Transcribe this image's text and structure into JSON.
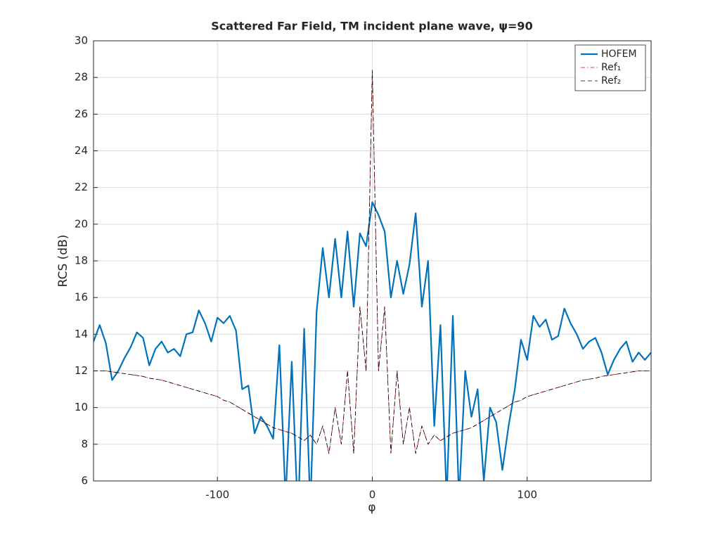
{
  "chart_data": {
    "type": "line",
    "title": "Scattered Far Field, TM incident plane wave, ψ=90",
    "xlabel": "φ",
    "ylabel": "RCS (dB)",
    "x": [
      -180,
      -176,
      -172,
      -168,
      -164,
      -160,
      -156,
      -152,
      -148,
      -144,
      -140,
      -136,
      -132,
      -128,
      -124,
      -120,
      -116,
      -112,
      -108,
      -104,
      -100,
      -96,
      -92,
      -88,
      -84,
      -80,
      -76,
      -72,
      -68,
      -64,
      -60,
      -56,
      -52,
      -48,
      -44,
      -40,
      -36,
      -32,
      -28,
      -24,
      -20,
      -16,
      -12,
      -8,
      -4,
      0,
      4,
      8,
      12,
      16,
      20,
      24,
      28,
      32,
      36,
      40,
      44,
      48,
      52,
      56,
      60,
      64,
      68,
      72,
      76,
      80,
      84,
      88,
      92,
      96,
      100,
      104,
      108,
      112,
      116,
      120,
      124,
      128,
      132,
      136,
      140,
      144,
      148,
      152,
      156,
      160,
      164,
      168,
      172,
      176,
      180
    ],
    "series": [
      {
        "name": "HOFEM",
        "color": "#0072bd",
        "style": "solid",
        "width": 2.2,
        "values": [
          13.6,
          14.5,
          13.5,
          11.5,
          12.0,
          12.7,
          13.3,
          14.1,
          13.8,
          12.3,
          13.2,
          13.6,
          13.0,
          13.2,
          12.8,
          14.0,
          14.1,
          15.3,
          14.6,
          13.6,
          14.9,
          14.6,
          15.0,
          14.2,
          11.0,
          11.2,
          8.6,
          9.5,
          9.0,
          8.3,
          13.4,
          5.0,
          12.5,
          4.0,
          14.3,
          4.5,
          15.2,
          18.7,
          16.0,
          19.2,
          16.0,
          19.6,
          15.5,
          19.5,
          18.8,
          21.2,
          20.5,
          19.6,
          16.0,
          18.0,
          16.2,
          17.8,
          20.6,
          15.5,
          18.0,
          9.0,
          14.5,
          5.0,
          15.0,
          5.0,
          12.0,
          9.5,
          11.0,
          6.0,
          10.0,
          9.2,
          6.6,
          9.0,
          11.0,
          13.7,
          12.6,
          15.0,
          14.4,
          14.8,
          13.7,
          13.9,
          15.4,
          14.6,
          14.0,
          13.2,
          13.6,
          13.8,
          13.0,
          11.8,
          12.6,
          13.2,
          13.6,
          12.5,
          13.0,
          12.6,
          13.0
        ]
      },
      {
        "name": "Ref₁",
        "color": "#cc0000",
        "style": "dashdot",
        "width": 0.8,
        "values": [
          12.0,
          12.0,
          12.0,
          11.95,
          11.9,
          11.85,
          11.8,
          11.75,
          11.7,
          11.6,
          11.55,
          11.5,
          11.4,
          11.3,
          11.2,
          11.1,
          11.0,
          10.9,
          10.8,
          10.7,
          10.6,
          10.4,
          10.3,
          10.1,
          9.9,
          9.7,
          9.5,
          9.3,
          9.1,
          8.9,
          8.8,
          8.7,
          8.6,
          8.4,
          8.2,
          8.5,
          8.0,
          9.0,
          7.5,
          10.0,
          8.0,
          12.0,
          7.5,
          15.5,
          12.0,
          28.4,
          12.0,
          15.5,
          7.5,
          12.0,
          8.0,
          10.0,
          7.5,
          9.0,
          8.0,
          8.5,
          8.2,
          8.4,
          8.6,
          8.7,
          8.8,
          8.9,
          9.1,
          9.3,
          9.5,
          9.7,
          9.9,
          10.1,
          10.3,
          10.4,
          10.6,
          10.7,
          10.8,
          10.9,
          11.0,
          11.1,
          11.2,
          11.3,
          11.4,
          11.5,
          11.55,
          11.6,
          11.7,
          11.75,
          11.8,
          11.85,
          11.9,
          11.95,
          12.0,
          12.0,
          12.0
        ]
      },
      {
        "name": "Ref₂",
        "color": "#000000",
        "style": "dashed",
        "width": 0.8,
        "values": [
          12.0,
          12.0,
          12.0,
          11.95,
          11.9,
          11.85,
          11.8,
          11.75,
          11.7,
          11.6,
          11.55,
          11.5,
          11.4,
          11.3,
          11.2,
          11.1,
          11.0,
          10.9,
          10.8,
          10.7,
          10.6,
          10.4,
          10.3,
          10.1,
          9.9,
          9.7,
          9.5,
          9.3,
          9.1,
          8.9,
          8.8,
          8.7,
          8.6,
          8.4,
          8.2,
          8.5,
          8.0,
          9.0,
          7.5,
          10.0,
          8.0,
          12.0,
          7.5,
          15.5,
          12.0,
          28.4,
          12.0,
          15.5,
          7.5,
          12.0,
          8.0,
          10.0,
          7.5,
          9.0,
          8.0,
          8.5,
          8.2,
          8.4,
          8.6,
          8.7,
          8.8,
          8.9,
          9.1,
          9.3,
          9.5,
          9.7,
          9.9,
          10.1,
          10.3,
          10.4,
          10.6,
          10.7,
          10.8,
          10.9,
          11.0,
          11.1,
          11.2,
          11.3,
          11.4,
          11.5,
          11.55,
          11.6,
          11.7,
          11.75,
          11.8,
          11.85,
          11.9,
          11.95,
          12.0,
          12.0,
          12.0
        ]
      }
    ],
    "xlim": [
      -180,
      180
    ],
    "xticks": [
      -100,
      0,
      100
    ],
    "ylim": [
      6,
      30
    ],
    "yticks": [
      6,
      8,
      10,
      12,
      14,
      16,
      18,
      20,
      22,
      24,
      26,
      28,
      30
    ],
    "grid": true,
    "legend": "upper-right"
  }
}
